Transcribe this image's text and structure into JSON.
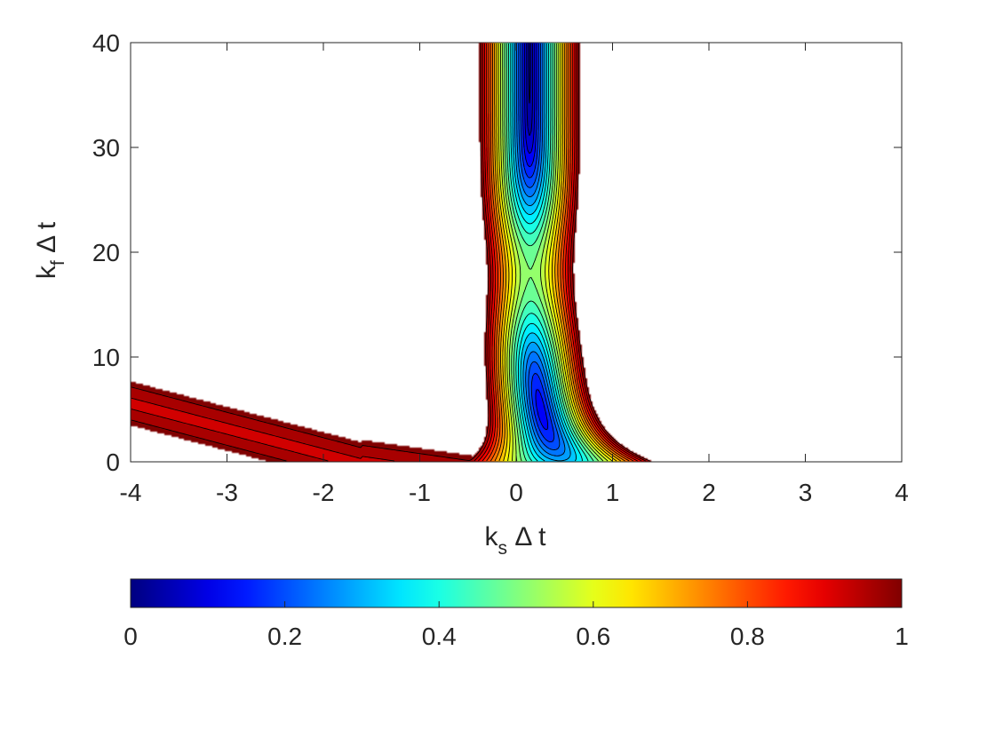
{
  "chart_data": {
    "type": "heatmap",
    "subtype": "filled-contour",
    "colormap": "jet",
    "title": "",
    "xlabel": {
      "main": "k",
      "sub": "s",
      "rest": " Δ t"
    },
    "ylabel": {
      "main": "k",
      "sub": "f",
      "rest": " Δ t"
    },
    "xlim": [
      -4,
      4
    ],
    "ylim": [
      0,
      40
    ],
    "xticks": [
      -4,
      -3,
      -2,
      -1,
      0,
      1,
      2,
      3,
      4
    ],
    "yticks": [
      0,
      10,
      20,
      30,
      40
    ],
    "grid": false,
    "contour_levels": [
      0.02,
      0.06,
      0.1,
      0.14,
      0.18,
      0.22,
      0.26,
      0.3,
      0.34,
      0.38,
      0.42,
      0.46,
      0.5,
      0.54,
      0.58,
      0.62,
      0.66,
      0.7,
      0.74,
      0.78,
      0.82,
      0.86,
      0.9,
      0.94,
      0.98
    ],
    "stability_region_max": 1,
    "minimum_near": {
      "x": 0.3,
      "y": 16
    },
    "colorbar": {
      "location": "below",
      "limits": [
        0,
        1
      ],
      "ticks": [
        0,
        0.2,
        0.4,
        0.6,
        0.8,
        1
      ],
      "tick_labels": [
        "0",
        "0.2",
        "0.4",
        "0.6",
        "0.8",
        "1"
      ]
    }
  }
}
